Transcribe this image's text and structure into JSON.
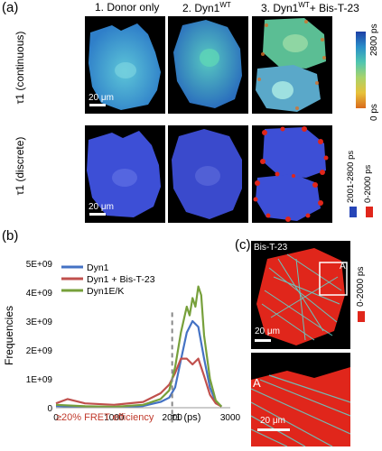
{
  "panel_labels": {
    "a": "(a)",
    "b": "(b)",
    "c": "(c)"
  },
  "columns": [
    {
      "prefix": "1. Donor only",
      "sup": ""
    },
    {
      "prefix": "2. Dyn1",
      "sup": "WT"
    },
    {
      "prefix": "3. Dyn1",
      "sup": "WT",
      "suffix": "+ Bis-T-23"
    }
  ],
  "rows": {
    "continuous": "τ1 (continuous)",
    "discrete": "τ1 (discrete)"
  },
  "scale_bar": "20 μm",
  "colorbar": {
    "top": "2800 ps",
    "bottom": "0 ps"
  },
  "discrete_key": {
    "blue": "2001-2800 ps",
    "red": "0-2000 ps"
  },
  "colors": {
    "blue_cell": "#3d4fd6",
    "red_puncta": "#e0261b",
    "dyn1": "#4472c4",
    "dyn1_bis": "#c0504d",
    "dyn1ek": "#77a03b"
  },
  "panel_c": {
    "label": "Bis-T-23",
    "inset": "A",
    "zoom_label": "A",
    "scale_top": "20 μm",
    "scale_bottom": "20 μm",
    "key": "0-2000 ps"
  },
  "fret_note": "≥20% FRET efficiency",
  "chart_data": {
    "type": "line",
    "xlabel": "τ1 (ps)",
    "ylabel": "Frequencies",
    "xlim": [
      0,
      3000
    ],
    "ylim": [
      0,
      5000000000
    ],
    "x_ticks": [
      "0",
      "1000",
      "2000",
      "3000"
    ],
    "y_ticks": [
      "0",
      "1E+09",
      "2E+09",
      "3E+09",
      "4E+09",
      "5E+09"
    ],
    "threshold_x": 2000,
    "legend_position": "top-left",
    "series": [
      {
        "name": "Dyn1",
        "color": "#4472c4",
        "x": [
          0,
          500,
          1000,
          1500,
          1800,
          1950,
          2050,
          2150,
          2250,
          2350,
          2450,
          2550,
          2650,
          2750,
          2850
        ],
        "y": [
          60000000,
          30000000,
          20000000,
          60000000,
          200000000,
          350000000,
          700000000,
          1650000000,
          2600000000,
          3000000000,
          2800000000,
          1700000000,
          700000000,
          200000000,
          40000000
        ]
      },
      {
        "name": "Dyn1 + Bis-T-23",
        "color": "#c0504d",
        "x": [
          0,
          200,
          500,
          1000,
          1500,
          1800,
          1950,
          2050,
          2150,
          2250,
          2350,
          2450,
          2550,
          2650,
          2750,
          2850
        ],
        "y": [
          150000000,
          300000000,
          150000000,
          100000000,
          200000000,
          500000000,
          800000000,
          1200000000,
          1700000000,
          1700000000,
          1500000000,
          1700000000,
          1100000000,
          450000000,
          150000000,
          40000000
        ]
      },
      {
        "name": "Dyn1E/K",
        "color": "#77a03b",
        "x": [
          0,
          500,
          1000,
          1500,
          1800,
          1950,
          2050,
          2150,
          2250,
          2300,
          2350,
          2400,
          2450,
          2500,
          2550,
          2650,
          2750,
          2850
        ],
        "y": [
          100000000,
          50000000,
          30000000,
          100000000,
          300000000,
          600000000,
          1400000000,
          2600000000,
          3500000000,
          3200000000,
          3800000000,
          3500000000,
          4200000000,
          3900000000,
          2500000000,
          1000000000,
          250000000,
          40000000
        ]
      }
    ]
  }
}
